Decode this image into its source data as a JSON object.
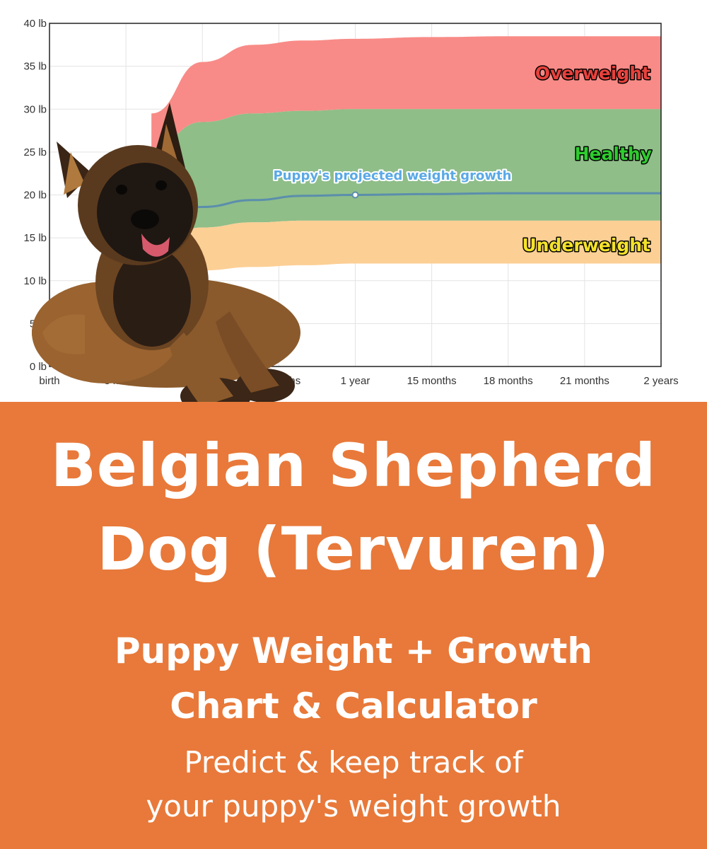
{
  "chart_data": {
    "type": "area",
    "y_ticks": [
      "0 lb",
      "5 lb",
      "10 lb",
      "15 lb",
      "20 lb",
      "25 lb",
      "30 lb",
      "35 lb",
      "40 lb"
    ],
    "x_ticks": [
      "birth",
      "3 months",
      "6 months",
      "9 months",
      "1 year",
      "15 months",
      "18 months",
      "21 months",
      "2 years"
    ],
    "x_unit_months": [
      0,
      3,
      6,
      9,
      12,
      15,
      18,
      21,
      24
    ],
    "ylim": [
      0,
      40
    ],
    "xlim": [
      0,
      24
    ],
    "grid": true,
    "bands": [
      {
        "name": "Overweight",
        "color": "#f88b87",
        "label_color": "#e8413c",
        "x": [
          4,
          6,
          8,
          10,
          12,
          15,
          18,
          21,
          24
        ],
        "lower": [
          25.5,
          28.5,
          29.5,
          29.8,
          30.0,
          30.0,
          30.0,
          30.0,
          30.0
        ],
        "upper": [
          29.5,
          35.5,
          37.5,
          38.0,
          38.2,
          38.4,
          38.5,
          38.5,
          38.5
        ]
      },
      {
        "name": "Healthy",
        "color": "#8fbe88",
        "label_color": "#2ecc2e",
        "x": [
          4,
          6,
          8,
          10,
          12,
          15,
          18,
          21,
          24
        ],
        "lower": [
          14.5,
          16.2,
          16.8,
          17.0,
          17.0,
          17.0,
          17.0,
          17.0,
          17.0
        ],
        "upper": [
          25.5,
          28.5,
          29.5,
          29.8,
          30.0,
          30.0,
          30.0,
          30.0,
          30.0
        ]
      },
      {
        "name": "Underweight",
        "color": "#fccf95",
        "label_color": "#f3e22a",
        "x": [
          4,
          6,
          8,
          10,
          12,
          15,
          18,
          21,
          24
        ],
        "lower": [
          11.0,
          11.2,
          11.6,
          11.8,
          12.0,
          12.0,
          12.0,
          12.0,
          12.0
        ],
        "upper": [
          14.5,
          16.2,
          16.8,
          17.0,
          17.0,
          17.0,
          17.0,
          17.0,
          17.0
        ]
      }
    ],
    "series": [
      {
        "name": "Puppy's projected weight growth",
        "color": "#5b8eac",
        "x": [
          4,
          6,
          8,
          10,
          12,
          15,
          18,
          21,
          24
        ],
        "values": [
          17.0,
          18.6,
          19.4,
          19.9,
          20.0,
          20.1,
          20.2,
          20.2,
          20.2
        ],
        "marker": {
          "x": 12,
          "y": 20.0
        }
      }
    ]
  },
  "banner": {
    "title_line1": "Belgian Shepherd",
    "title_line2": "Dog (Tervuren)",
    "subtitle_line1": "Puppy Weight + Growth",
    "subtitle_line2": "Chart & Calculator",
    "tagline_line1": "Predict & keep track of",
    "tagline_line2": "your puppy's weight growth",
    "background_color": "#e8793a"
  },
  "image": {
    "subject": "puppy-photo"
  }
}
